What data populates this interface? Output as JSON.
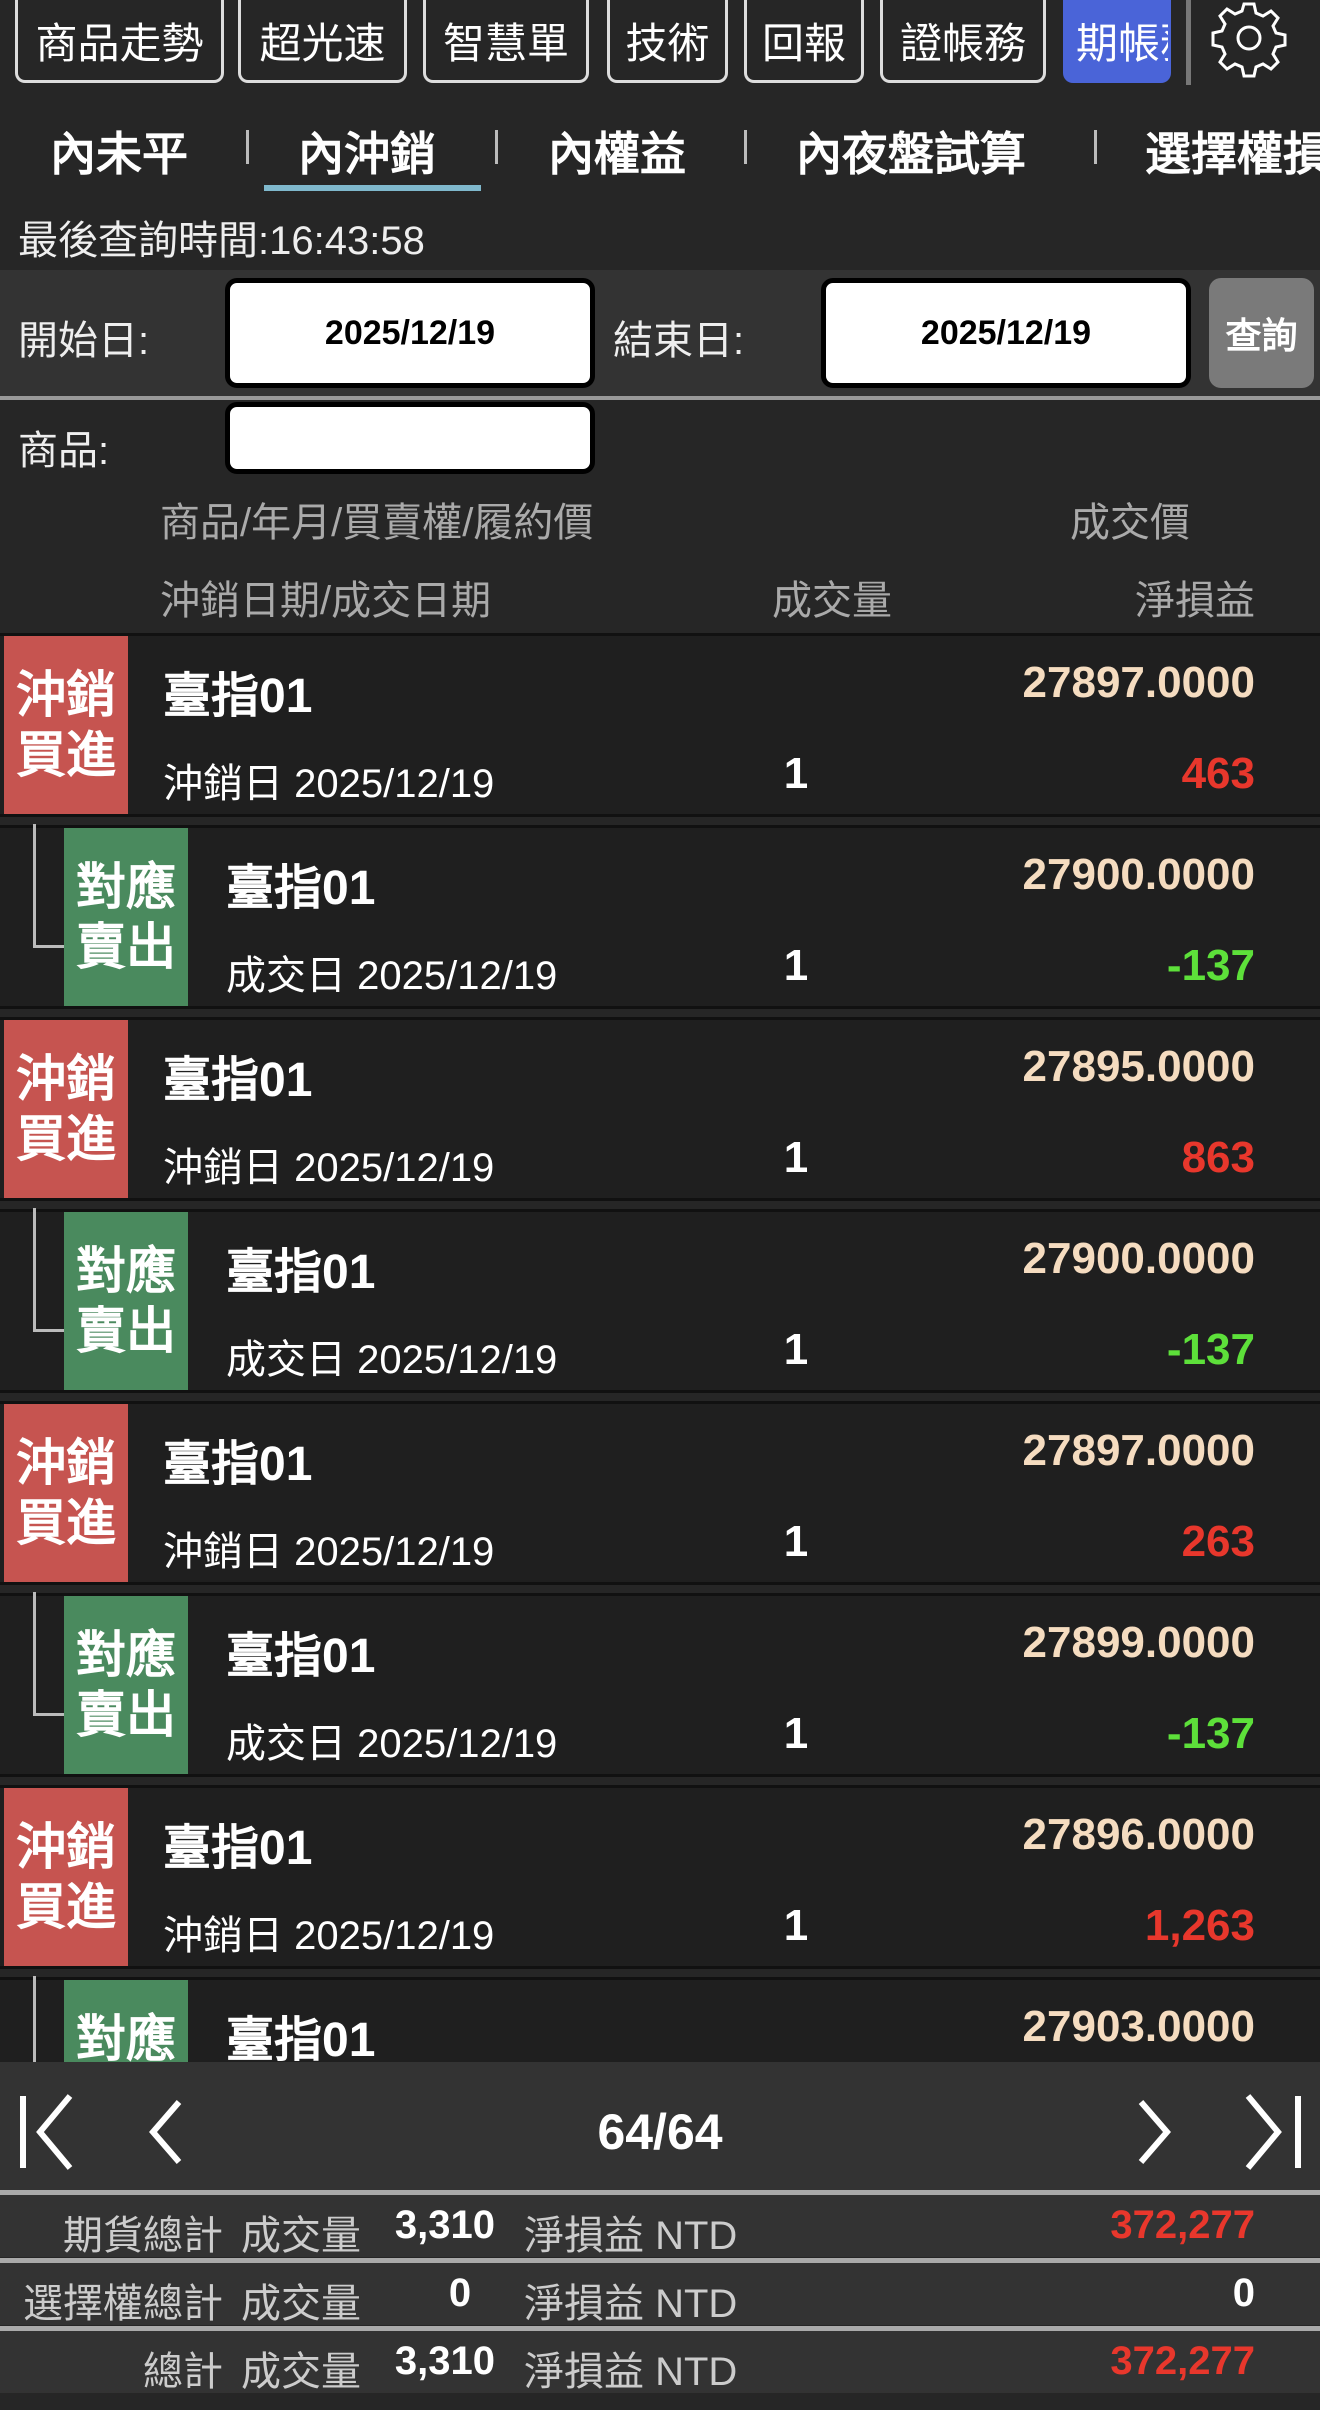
{
  "top_nav": [
    "商品走勢",
    "超光速",
    "智慧單",
    "技術",
    "回報",
    "證帳務",
    "期帳務"
  ],
  "active_top": "期帳務",
  "tabs": [
    "內未平",
    "內沖銷",
    "內權益",
    "內夜盤試算",
    "選擇權損"
  ],
  "active_tab": "內沖銷",
  "query_time": "最後查詢時間:16:43:58",
  "filters": {
    "start_label": "開始日:",
    "start_value": "2025/12/19",
    "end_label": "結束日:",
    "end_value": "2025/12/19",
    "query_button": "查詢",
    "product_label": "商品:",
    "product_value": ""
  },
  "headers": {
    "product": "商品/年月/買賣權/履約價",
    "price": "成交價",
    "date": "沖銷日期/成交日期",
    "qty": "成交量",
    "pnl": "淨損益"
  },
  "colors": {
    "buy_badge": "#c65450",
    "sell_badge": "#4a8a5e",
    "positive": "#e8372c",
    "negative": "#5de03a",
    "price": "#f5dcc0",
    "active_tab_underline": "#7fb8cc",
    "active_top": "#4a64d8"
  },
  "rows": [
    {
      "type": "main",
      "badge": "沖銷買進",
      "name": "臺指01",
      "date": "沖銷日 2025/12/19",
      "qty": "1",
      "price": "27897.0000",
      "pnl": "463",
      "sign": "pos"
    },
    {
      "type": "sub",
      "badge": "對應賣出",
      "name": "臺指01",
      "date": "成交日 2025/12/19",
      "qty": "1",
      "price": "27900.0000",
      "pnl": "-137",
      "sign": "neg"
    },
    {
      "type": "main",
      "badge": "沖銷買進",
      "name": "臺指01",
      "date": "沖銷日 2025/12/19",
      "qty": "1",
      "price": "27895.0000",
      "pnl": "863",
      "sign": "pos"
    },
    {
      "type": "sub",
      "badge": "對應賣出",
      "name": "臺指01",
      "date": "成交日 2025/12/19",
      "qty": "1",
      "price": "27900.0000",
      "pnl": "-137",
      "sign": "neg"
    },
    {
      "type": "main",
      "badge": "沖銷買進",
      "name": "臺指01",
      "date": "沖銷日 2025/12/19",
      "qty": "1",
      "price": "27897.0000",
      "pnl": "263",
      "sign": "pos"
    },
    {
      "type": "sub",
      "badge": "對應賣出",
      "name": "臺指01",
      "date": "成交日 2025/12/19",
      "qty": "1",
      "price": "27899.0000",
      "pnl": "-137",
      "sign": "neg"
    },
    {
      "type": "main",
      "badge": "沖銷買進",
      "name": "臺指01",
      "date": "沖銷日 2025/12/19",
      "qty": "1",
      "price": "27896.0000",
      "pnl": "1,263",
      "sign": "pos"
    },
    {
      "type": "sub",
      "badge": "對應賣出",
      "name": "臺指01",
      "date": "",
      "qty": "",
      "price": "27903.0000",
      "pnl": "",
      "sign": "neg"
    }
  ],
  "pager": {
    "page": "64/64"
  },
  "summary": [
    {
      "label": "期貨總計",
      "qty_label": "成交量",
      "qty": "3,310",
      "pnl_label": "淨損益 NTD",
      "pnl": "372,277",
      "sign": "pos"
    },
    {
      "label": "選擇權總計",
      "qty_label": "成交量",
      "qty": "0",
      "pnl_label": "淨損益 NTD",
      "pnl": "0",
      "sign": "zero"
    },
    {
      "label": "總計",
      "qty_label": "成交量",
      "qty": "3,310",
      "pnl_label": "淨損益 NTD",
      "pnl": "372,277",
      "sign": "pos"
    }
  ]
}
